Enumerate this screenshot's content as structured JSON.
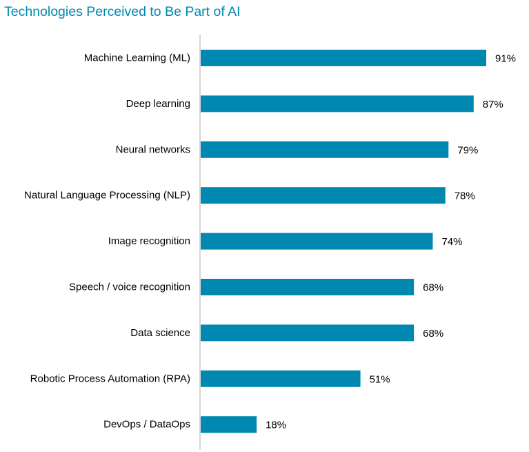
{
  "colors": {
    "bar": "#0088B0",
    "title": "#0088B0",
    "axis": "#C8C8C8"
  },
  "chart_data": {
    "type": "bar",
    "orientation": "horizontal",
    "title": "Technologies Perceived to Be Part of AI",
    "xlabel": "",
    "ylabel": "",
    "xlim": [
      0,
      100
    ],
    "grid": false,
    "legend": "none",
    "value_suffix": "%",
    "categories": [
      "Machine Learning (ML)",
      "Deep learning",
      "Neural networks",
      "Natural Language Processing (NLP)",
      "Image recognition",
      "Speech / voice recognition",
      "Data science",
      "Robotic Process Automation (RPA)",
      "DevOps / DataOps"
    ],
    "values": [
      91,
      87,
      79,
      78,
      74,
      68,
      68,
      51,
      18
    ]
  }
}
